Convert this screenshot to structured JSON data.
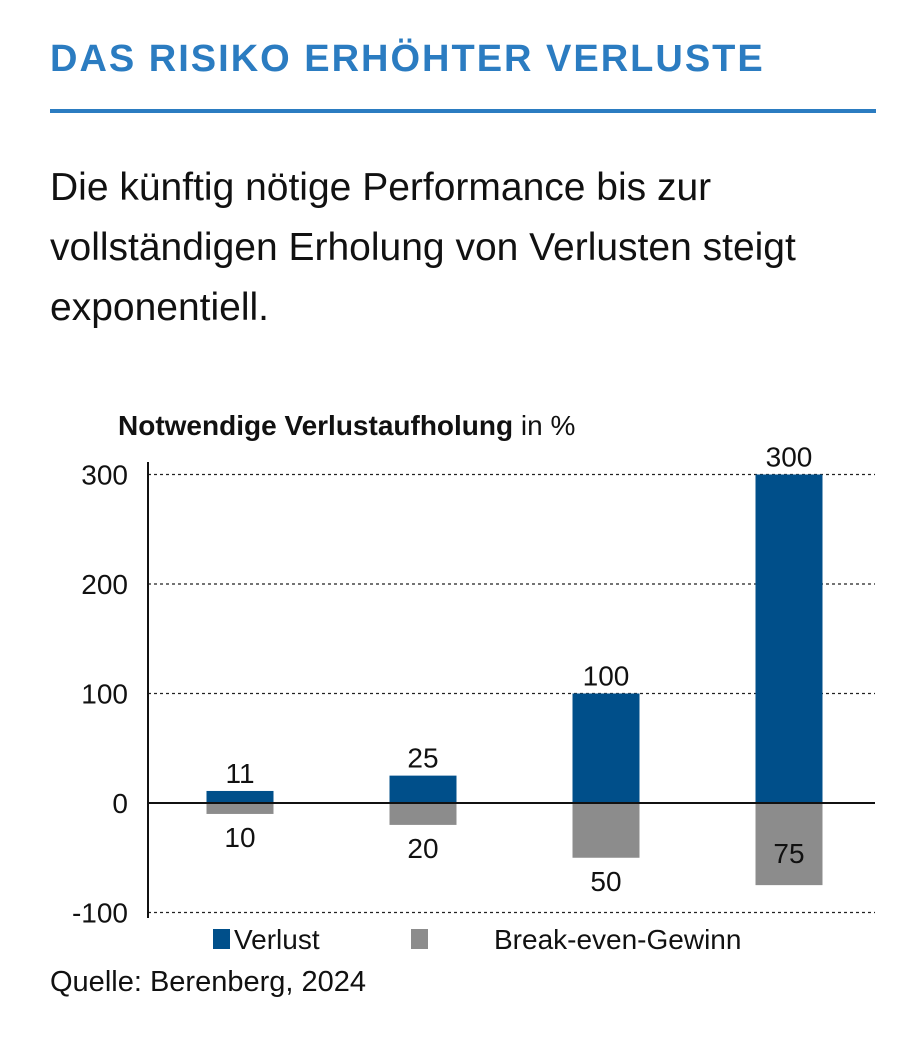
{
  "header": {
    "title": "DAS RISIKO ERHÖHTER VERLUSTE",
    "subtitle": "Die künftig nötige Performance bis zur vollständigen Erholung von Verlusten steigt exponentiell."
  },
  "source": "Quelle: Berenberg, 2024",
  "colors": {
    "title": "#2b7cc1",
    "series_blue": "#004f8a",
    "series_gray": "#8c8c8c"
  },
  "chart_data": {
    "type": "bar",
    "title_bold": "Notwendige Verlustaufholung",
    "title_rest": " in %",
    "categories": [
      "",
      "",
      "",
      ""
    ],
    "series": [
      {
        "name": "Verlust",
        "color": "#004f8a",
        "values": [
          11,
          25,
          100,
          300
        ],
        "labels": [
          "11",
          "25",
          "100",
          "300"
        ]
      },
      {
        "name": "Break-even-Gewinn",
        "color": "#8c8c8c",
        "values": [
          -10,
          -20,
          -50,
          -75
        ],
        "labels": [
          "10",
          "20",
          "50",
          "75"
        ]
      }
    ],
    "ylim": [
      -100,
      300
    ],
    "yticks": [
      300,
      200,
      100,
      0,
      -100
    ],
    "grid": true,
    "legend": "bottom"
  }
}
